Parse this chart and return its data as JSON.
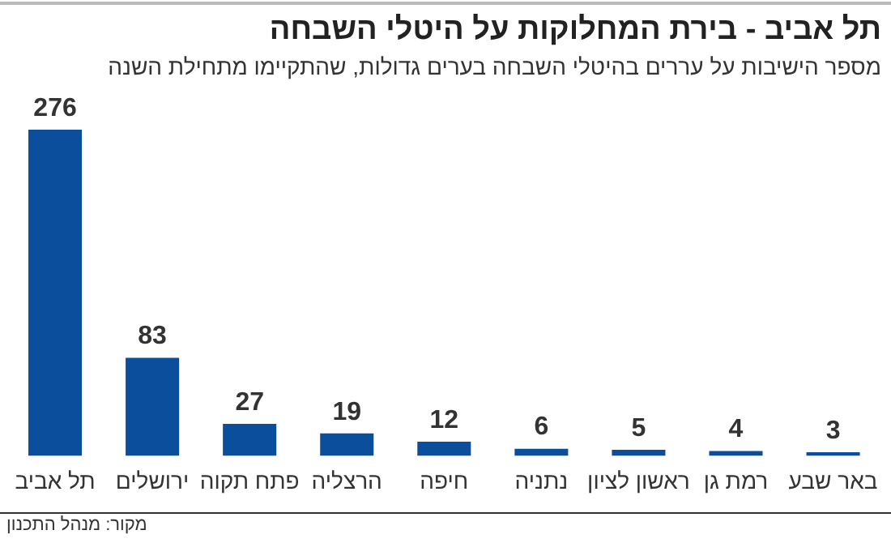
{
  "chart_data": {
    "type": "bar",
    "title": "תל אביב - בירת המחלוקות על היטלי השבחה",
    "subtitle": "מספר הישיבות על עררים בהיטלי השבחה בערים גדולות, שהתקיימו מתחילת השנה",
    "categories": [
      "תל אביב",
      "ירושלים",
      "פתח תקוה",
      "הרצליה",
      "חיפה",
      "נתניה",
      "ראשון לציון",
      "רמת גן",
      "באר שבע"
    ],
    "values": [
      276,
      83,
      27,
      19,
      12,
      6,
      5,
      4,
      3
    ],
    "color": "#0b4f9c",
    "data_labels": true,
    "grid": false,
    "legend": false,
    "tick_labels": "x",
    "annotations": [
      "מקור: מנהל התכנון"
    ]
  }
}
